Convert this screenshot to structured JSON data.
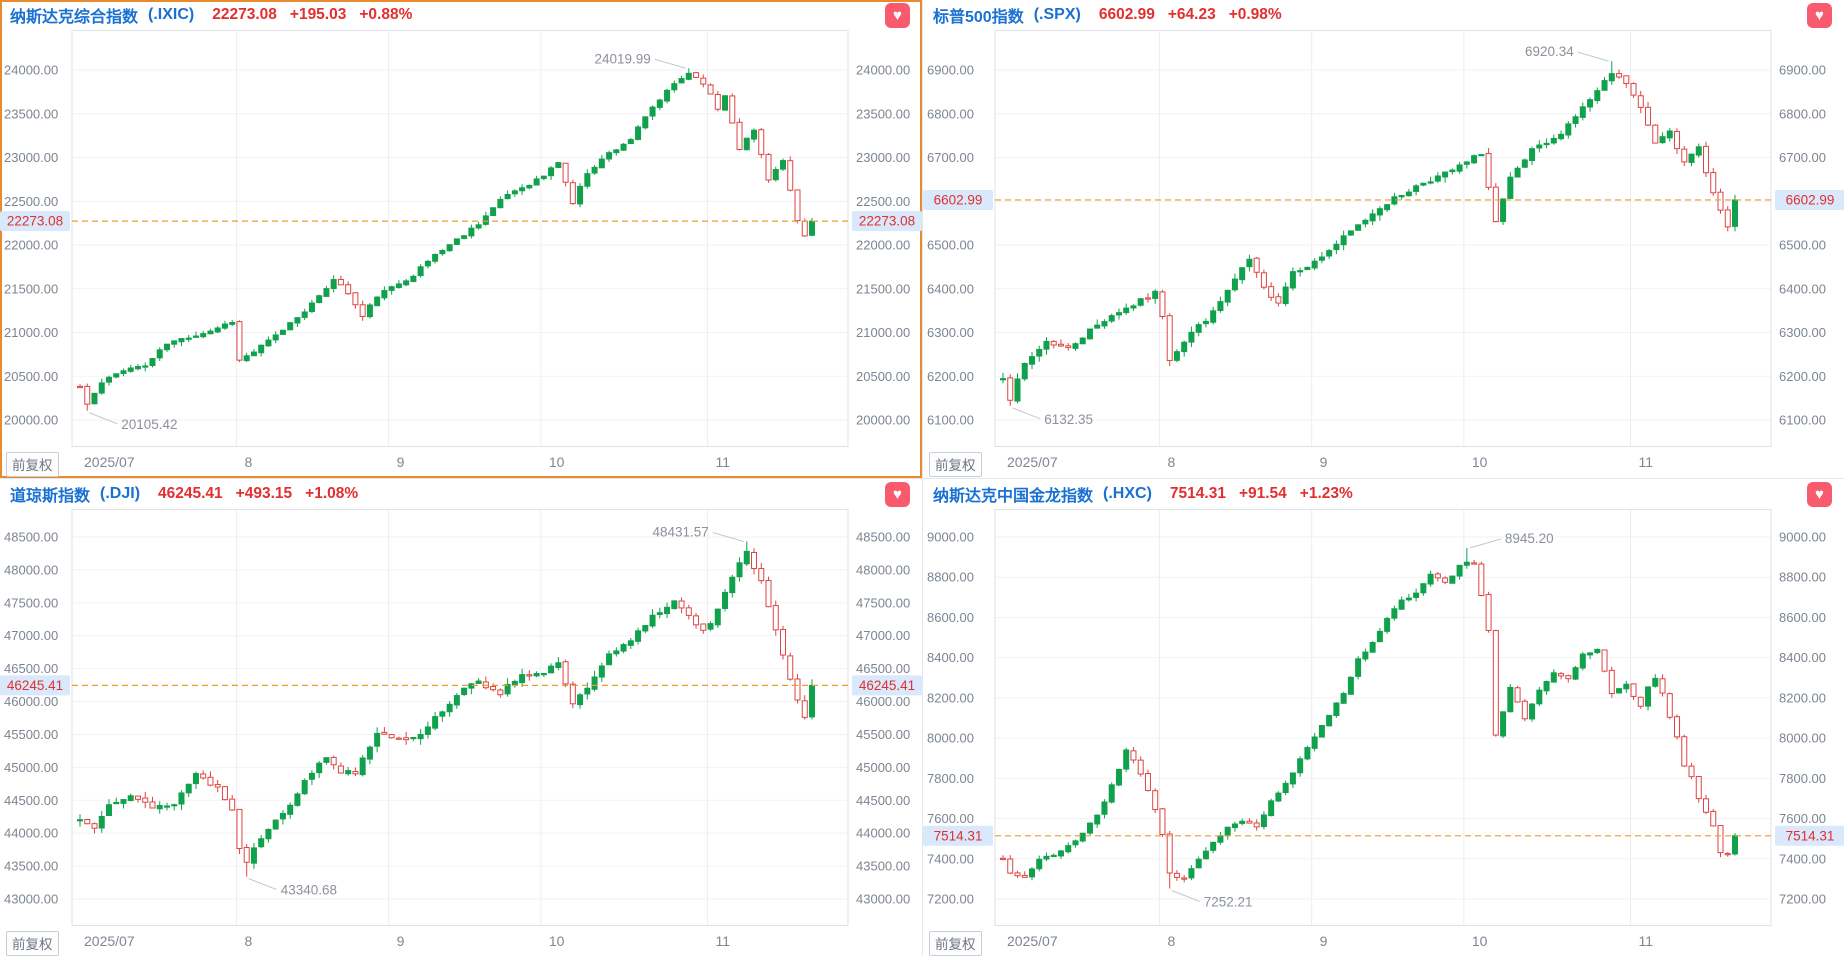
{
  "adjustment_label": "前复权",
  "x_axis_labels": [
    "2025/07",
    "8",
    "9",
    "10",
    "11"
  ],
  "style": {
    "up_color": "#10a14c",
    "down_color": "#e04343",
    "dashed_line_color": "#f09a2c",
    "highlight_bg": "#d9e8fa",
    "highlight_text": "#e0302f",
    "title_color": "#1a71d2",
    "value_color": "#e22f2f",
    "selected_border": "#e88a2e",
    "grid_color": "#f0f2f4",
    "vgrid_color": "#eceef1",
    "plot_border": "#dde0e5",
    "tick_text": "#7c8591",
    "annotation_text": "#8b919b",
    "favorite_bg": "#f85b6d"
  },
  "chart_data": [
    {
      "id": "ixic",
      "type": "candlestick",
      "name": "纳斯达克综合指数",
      "code": "(.IXIC)",
      "last": "22273.08",
      "change": "+195.03",
      "change_pct": "+0.88%",
      "last_value": 22273.08,
      "selected": true,
      "seed": 11,
      "amp": 85,
      "axis": {
        "max_tick": 24000,
        "min_tick": 20000,
        "step": 500
      },
      "high": {
        "day": 84,
        "value": 24019.99,
        "label": "24019.99",
        "side": "left"
      },
      "low": {
        "day": 1,
        "value": 20105.42,
        "label": "20105.42",
        "side": "right"
      },
      "waypoints": [
        [
          0,
          20380
        ],
        [
          1,
          20180
        ],
        [
          3,
          20420
        ],
        [
          6,
          20580
        ],
        [
          9,
          20620
        ],
        [
          12,
          20870
        ],
        [
          15,
          20950
        ],
        [
          18,
          21020
        ],
        [
          21,
          21130
        ],
        [
          22,
          20680
        ],
        [
          24,
          20780
        ],
        [
          27,
          20960
        ],
        [
          30,
          21180
        ],
        [
          33,
          21400
        ],
        [
          35,
          21620
        ],
        [
          37,
          21450
        ],
        [
          39,
          21180
        ],
        [
          41,
          21420
        ],
        [
          43,
          21510
        ],
        [
          46,
          21660
        ],
        [
          49,
          21890
        ],
        [
          52,
          22060
        ],
        [
          55,
          22250
        ],
        [
          57,
          22420
        ],
        [
          59,
          22580
        ],
        [
          62,
          22700
        ],
        [
          64,
          22790
        ],
        [
          66,
          22950
        ],
        [
          68,
          22480
        ],
        [
          70,
          22830
        ],
        [
          73,
          23050
        ],
        [
          76,
          23210
        ],
        [
          79,
          23570
        ],
        [
          82,
          23840
        ],
        [
          84,
          23970
        ],
        [
          86,
          23860
        ],
        [
          88,
          23560
        ],
        [
          89,
          23710
        ],
        [
          91,
          23110
        ],
        [
          93,
          23310
        ],
        [
          95,
          22760
        ],
        [
          97,
          22960
        ],
        [
          99,
          22260
        ],
        [
          100,
          22100
        ],
        [
          101,
          22273.08
        ]
      ]
    },
    {
      "id": "spx",
      "type": "candlestick",
      "name": "标普500指数",
      "code": "(.SPX)",
      "last": "6602.99",
      "change": "+64.23",
      "change_pct": "+0.98%",
      "last_value": 6602.99,
      "selected": false,
      "seed": 7,
      "amp": 22,
      "axis": {
        "max_tick": 6900,
        "min_tick": 6100,
        "step": 100
      },
      "high": {
        "day": 84,
        "value": 6920.34,
        "label": "6920.34",
        "side": "left"
      },
      "low": {
        "day": 1,
        "value": 6132.35,
        "label": "6132.35",
        "side": "right"
      },
      "waypoints": [
        [
          0,
          6200
        ],
        [
          1,
          6150
        ],
        [
          3,
          6227
        ],
        [
          6,
          6280
        ],
        [
          9,
          6263
        ],
        [
          12,
          6305
        ],
        [
          15,
          6340
        ],
        [
          18,
          6363
        ],
        [
          21,
          6390
        ],
        [
          22,
          6340
        ],
        [
          23,
          6240
        ],
        [
          26,
          6300
        ],
        [
          29,
          6345
        ],
        [
          32,
          6420
        ],
        [
          34,
          6466
        ],
        [
          36,
          6400
        ],
        [
          38,
          6371
        ],
        [
          40,
          6440
        ],
        [
          43,
          6460
        ],
        [
          46,
          6502
        ],
        [
          49,
          6544
        ],
        [
          52,
          6587
        ],
        [
          55,
          6615
        ],
        [
          58,
          6643
        ],
        [
          61,
          6662
        ],
        [
          64,
          6688
        ],
        [
          66,
          6711
        ],
        [
          68,
          6552
        ],
        [
          70,
          6650
        ],
        [
          73,
          6715
        ],
        [
          76,
          6740
        ],
        [
          79,
          6795
        ],
        [
          82,
          6850
        ],
        [
          84,
          6891
        ],
        [
          86,
          6870
        ],
        [
          88,
          6812
        ],
        [
          90,
          6735
        ],
        [
          92,
          6766
        ],
        [
          94,
          6685
        ],
        [
          96,
          6723
        ],
        [
          98,
          6618
        ],
        [
          100,
          6539
        ],
        [
          101,
          6602.99
        ]
      ]
    },
    {
      "id": "dji",
      "type": "candlestick",
      "name": "道琼斯指数",
      "code": "(.DJI)",
      "last": "46245.41",
      "change": "+493.15",
      "change_pct": "+1.08%",
      "last_value": 46245.41,
      "selected": false,
      "seed": 13,
      "amp": 160,
      "axis": {
        "max_tick": 48500,
        "min_tick": 43000,
        "step": 500
      },
      "high": {
        "day": 92,
        "value": 48431.57,
        "label": "48431.57",
        "side": "left"
      },
      "low": {
        "day": 23,
        "value": 43340.68,
        "label": "43340.68",
        "side": "right"
      },
      "waypoints": [
        [
          0,
          44200
        ],
        [
          2,
          44110
        ],
        [
          4,
          44470
        ],
        [
          7,
          44580
        ],
        [
          10,
          44370
        ],
        [
          13,
          44460
        ],
        [
          16,
          44900
        ],
        [
          19,
          44690
        ],
        [
          21,
          44340
        ],
        [
          22,
          43780
        ],
        [
          23,
          43590
        ],
        [
          26,
          44090
        ],
        [
          29,
          44460
        ],
        [
          32,
          44920
        ],
        [
          34,
          45170
        ],
        [
          36,
          44930
        ],
        [
          38,
          44940
        ],
        [
          41,
          45540
        ],
        [
          43,
          45480
        ],
        [
          46,
          45420
        ],
        [
          49,
          45750
        ],
        [
          52,
          46110
        ],
        [
          55,
          46290
        ],
        [
          58,
          46140
        ],
        [
          61,
          46430
        ],
        [
          64,
          46400
        ],
        [
          66,
          46600
        ],
        [
          68,
          45950
        ],
        [
          70,
          46190
        ],
        [
          73,
          46690
        ],
        [
          76,
          46920
        ],
        [
          79,
          47300
        ],
        [
          82,
          47520
        ],
        [
          84,
          47340
        ],
        [
          86,
          47060
        ],
        [
          88,
          47370
        ],
        [
          90,
          47900
        ],
        [
          92,
          48250
        ],
        [
          94,
          47850
        ],
        [
          96,
          47090
        ],
        [
          98,
          46350
        ],
        [
          100,
          45750
        ],
        [
          101,
          46245.41
        ]
      ]
    },
    {
      "id": "hxc",
      "type": "candlestick",
      "name": "纳斯达克中国金龙指数",
      "code": "(.HXC)",
      "last": "7514.31",
      "change": "+91.54",
      "change_pct": "+1.23%",
      "last_value": 7514.31,
      "selected": false,
      "seed": 21,
      "amp": 38,
      "axis": {
        "max_tick": 9000,
        "min_tick": 7200,
        "step": 200
      },
      "high": {
        "day": 64,
        "value": 8945.2,
        "label": "8945.20",
        "side": "right"
      },
      "low": {
        "day": 23,
        "value": 7252.21,
        "label": "7252.21",
        "side": "right"
      },
      "waypoints": [
        [
          0,
          7400
        ],
        [
          1,
          7330
        ],
        [
          3,
          7310
        ],
        [
          5,
          7390
        ],
        [
          7,
          7420
        ],
        [
          9,
          7460
        ],
        [
          11,
          7530
        ],
        [
          13,
          7620
        ],
        [
          15,
          7760
        ],
        [
          17,
          7940
        ],
        [
          19,
          7830
        ],
        [
          21,
          7650
        ],
        [
          22,
          7520
        ],
        [
          23,
          7330
        ],
        [
          25,
          7300
        ],
        [
          27,
          7390
        ],
        [
          29,
          7480
        ],
        [
          31,
          7560
        ],
        [
          33,
          7590
        ],
        [
          35,
          7560
        ],
        [
          37,
          7680
        ],
        [
          39,
          7770
        ],
        [
          41,
          7890
        ],
        [
          43,
          8000
        ],
        [
          45,
          8120
        ],
        [
          47,
          8230
        ],
        [
          49,
          8390
        ],
        [
          51,
          8470
        ],
        [
          53,
          8600
        ],
        [
          55,
          8680
        ],
        [
          57,
          8730
        ],
        [
          59,
          8820
        ],
        [
          61,
          8770
        ],
        [
          63,
          8850
        ],
        [
          64,
          8880
        ],
        [
          65,
          8860
        ],
        [
          66,
          8700
        ],
        [
          67,
          8540
        ],
        [
          68,
          8020
        ],
        [
          70,
          8260
        ],
        [
          72,
          8090
        ],
        [
          74,
          8240
        ],
        [
          76,
          8330
        ],
        [
          78,
          8290
        ],
        [
          80,
          8420
        ],
        [
          82,
          8440
        ],
        [
          84,
          8230
        ],
        [
          86,
          8260
        ],
        [
          88,
          8160
        ],
        [
          89,
          8250
        ],
        [
          90,
          8300
        ],
        [
          91,
          8230
        ],
        [
          92,
          8100
        ],
        [
          93,
          8000
        ],
        [
          94,
          7860
        ],
        [
          95,
          7800
        ],
        [
          96,
          7700
        ],
        [
          97,
          7640
        ],
        [
          98,
          7560
        ],
        [
          99,
          7440
        ],
        [
          100,
          7420
        ],
        [
          101,
          7514.31
        ]
      ]
    }
  ]
}
